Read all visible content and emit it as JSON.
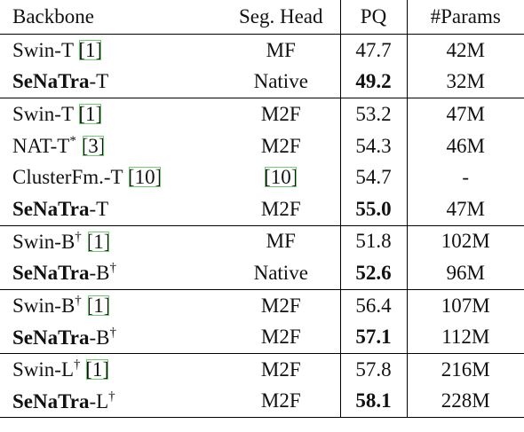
{
  "table": {
    "header": [
      "Backbone",
      "Seg. Head",
      "PQ",
      "#Params"
    ],
    "groups": [
      [
        [
          [
            {
              "text": "Swin-T "
            },
            {
              "text": "[1]",
              "style": "cite"
            }
          ],
          [
            {
              "text": "MF"
            }
          ],
          [
            {
              "text": "47.7"
            }
          ],
          [
            {
              "text": "42M"
            }
          ]
        ],
        [
          [
            {
              "text": "SeNaTra",
              "style": "bold"
            },
            {
              "text": "-T"
            }
          ],
          [
            {
              "text": "Native"
            }
          ],
          [
            {
              "text": "49.2",
              "style": "bold"
            }
          ],
          [
            {
              "text": "32M"
            }
          ]
        ]
      ],
      [
        [
          [
            {
              "text": "Swin-T "
            },
            {
              "text": "[1]",
              "style": "cite"
            }
          ],
          [
            {
              "text": "M2F"
            }
          ],
          [
            {
              "text": "53.2"
            }
          ],
          [
            {
              "text": "47M"
            }
          ]
        ],
        [
          [
            {
              "text": "NAT-T"
            },
            {
              "text": "*",
              "style": "sup"
            },
            {
              "text": " "
            },
            {
              "text": "[3]",
              "style": "cite"
            }
          ],
          [
            {
              "text": "M2F"
            }
          ],
          [
            {
              "text": "54.3"
            }
          ],
          [
            {
              "text": "46M"
            }
          ]
        ],
        [
          [
            {
              "text": "ClusterFm.-T "
            },
            {
              "text": "[10]",
              "style": "cite"
            }
          ],
          [
            {
              "text": "[10]",
              "style": "cite"
            }
          ],
          [
            {
              "text": "54.7"
            }
          ],
          [
            {
              "text": "-"
            }
          ]
        ],
        [
          [
            {
              "text": "SeNaTra",
              "style": "bold"
            },
            {
              "text": "-T"
            }
          ],
          [
            {
              "text": "M2F"
            }
          ],
          [
            {
              "text": "55.0",
              "style": "bold"
            }
          ],
          [
            {
              "text": "47M"
            }
          ]
        ]
      ],
      [
        [
          [
            {
              "text": "Swin-B"
            },
            {
              "text": "†",
              "style": "sup"
            },
            {
              "text": " "
            },
            {
              "text": "[1]",
              "style": "cite"
            }
          ],
          [
            {
              "text": "MF"
            }
          ],
          [
            {
              "text": "51.8"
            }
          ],
          [
            {
              "text": "102M"
            }
          ]
        ],
        [
          [
            {
              "text": "SeNaTra",
              "style": "bold"
            },
            {
              "text": "-B"
            },
            {
              "text": "†",
              "style": "sup"
            }
          ],
          [
            {
              "text": "Native"
            }
          ],
          [
            {
              "text": "52.6",
              "style": "bold"
            }
          ],
          [
            {
              "text": "96M"
            }
          ]
        ]
      ],
      [
        [
          [
            {
              "text": "Swin-B"
            },
            {
              "text": "†",
              "style": "sup"
            },
            {
              "text": " "
            },
            {
              "text": "[1]",
              "style": "cite"
            }
          ],
          [
            {
              "text": "M2F"
            }
          ],
          [
            {
              "text": "56.4"
            }
          ],
          [
            {
              "text": "107M"
            }
          ]
        ],
        [
          [
            {
              "text": "SeNaTra",
              "style": "bold"
            },
            {
              "text": "-B"
            },
            {
              "text": "†",
              "style": "sup"
            }
          ],
          [
            {
              "text": "M2F"
            }
          ],
          [
            {
              "text": "57.1",
              "style": "bold"
            }
          ],
          [
            {
              "text": "112M"
            }
          ]
        ]
      ],
      [
        [
          [
            {
              "text": "Swin-L"
            },
            {
              "text": "†",
              "style": "sup"
            },
            {
              "text": " "
            },
            {
              "text": "[1]",
              "style": "cite"
            }
          ],
          [
            {
              "text": "M2F"
            }
          ],
          [
            {
              "text": "57.8"
            }
          ],
          [
            {
              "text": "216M"
            }
          ]
        ],
        [
          [
            {
              "text": "SeNaTra",
              "style": "bold"
            },
            {
              "text": "-L"
            },
            {
              "text": "†",
              "style": "sup"
            }
          ],
          [
            {
              "text": "M2F"
            }
          ],
          [
            {
              "text": "58.1",
              "style": "bold"
            }
          ],
          [
            {
              "text": "228M"
            }
          ]
        ]
      ]
    ]
  }
}
